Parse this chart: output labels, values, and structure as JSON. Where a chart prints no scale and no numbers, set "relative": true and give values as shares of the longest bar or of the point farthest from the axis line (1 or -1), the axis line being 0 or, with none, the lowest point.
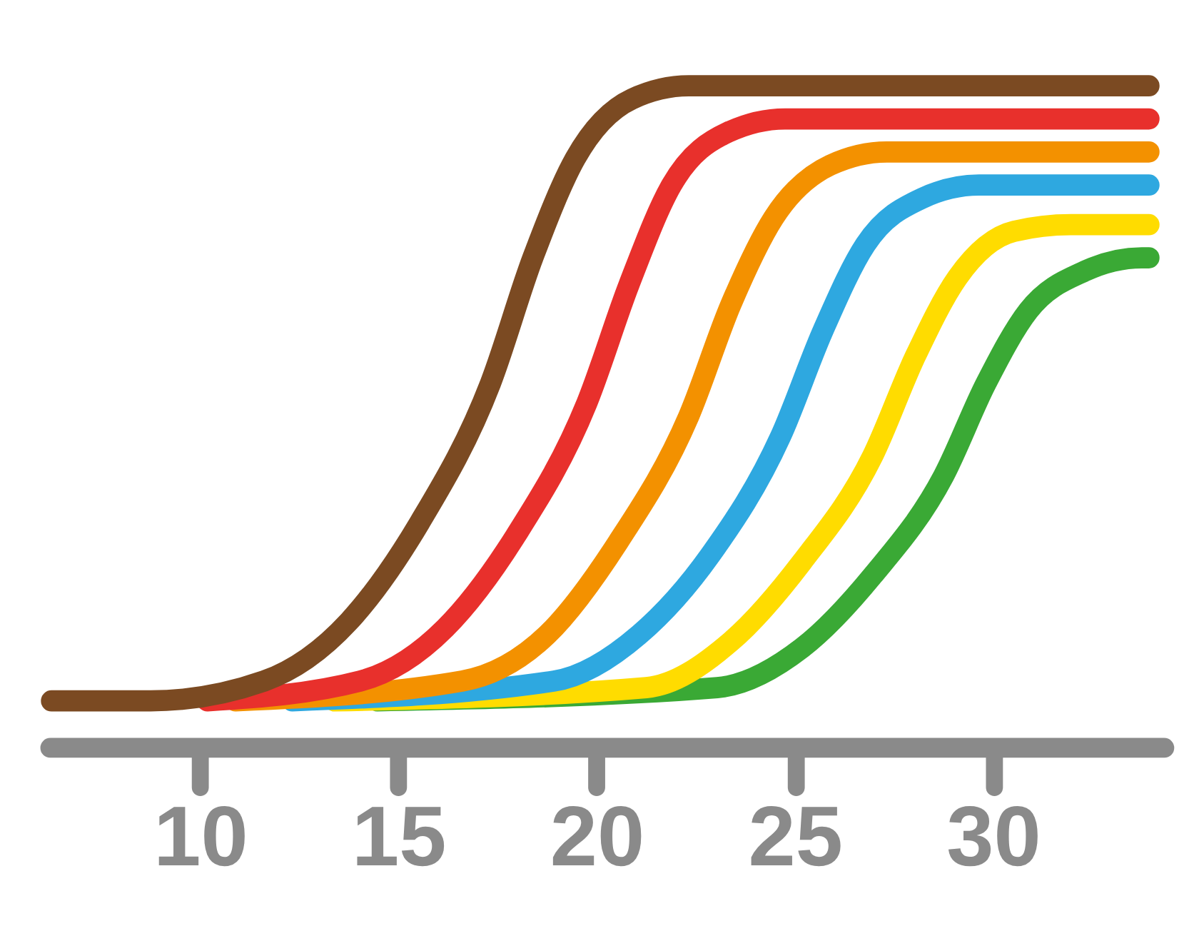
{
  "chart_data": {
    "type": "line",
    "relative": true,
    "xlim": [
      6.2,
      34.3
    ],
    "xticks": [
      10,
      15,
      20,
      25,
      30
    ],
    "series": [
      {
        "color": "#7b4a22",
        "x": [
          6.25,
          8.75,
          11.61,
          13.75,
          15.54,
          17.32,
          18.39,
          19.46,
          20.89,
          22.32,
          33.93
        ],
        "values": [
          0.07,
          0.07,
          0.1,
          0.19,
          0.34,
          0.55,
          0.74,
          0.89,
          0.98,
          1.0,
          1.0
        ]
      },
      {
        "color": "#e8302c",
        "x": [
          10.18,
          14.04,
          16.18,
          17.96,
          19.75,
          20.82,
          21.89,
          23.32,
          24.75,
          33.93
        ],
        "values": [
          0.07,
          0.1,
          0.18,
          0.32,
          0.52,
          0.7,
          0.85,
          0.93,
          0.95,
          0.95
        ]
      },
      {
        "color": "#f39100",
        "x": [
          10.89,
          16.61,
          18.75,
          20.54,
          22.32,
          23.39,
          24.46,
          25.89,
          27.32,
          33.93
        ],
        "values": [
          0.07,
          0.1,
          0.17,
          0.31,
          0.5,
          0.67,
          0.8,
          0.88,
          0.9,
          0.9
        ]
      },
      {
        "color": "#2ea8e0",
        "x": [
          12.32,
          18.93,
          21.07,
          22.86,
          24.64,
          25.71,
          26.78,
          28.21,
          29.64,
          33.93
        ],
        "values": [
          0.07,
          0.1,
          0.17,
          0.29,
          0.47,
          0.63,
          0.76,
          0.83,
          0.85,
          0.85
        ]
      },
      {
        "color": "#ffdc00",
        "x": [
          13.39,
          21.25,
          23.39,
          25.18,
          26.96,
          28.03,
          29.1,
          30.53,
          31.96,
          33.93
        ],
        "values": [
          0.07,
          0.09,
          0.16,
          0.28,
          0.44,
          0.59,
          0.71,
          0.78,
          0.79,
          0.79
        ]
      },
      {
        "color": "#3aa935",
        "x": [
          14.46,
          23.04,
          25.18,
          26.97,
          28.75,
          29.82,
          30.89,
          32.32,
          33.75,
          33.93
        ],
        "values": [
          0.07,
          0.09,
          0.15,
          0.26,
          0.41,
          0.55,
          0.66,
          0.72,
          0.74,
          0.74
        ]
      }
    ]
  }
}
